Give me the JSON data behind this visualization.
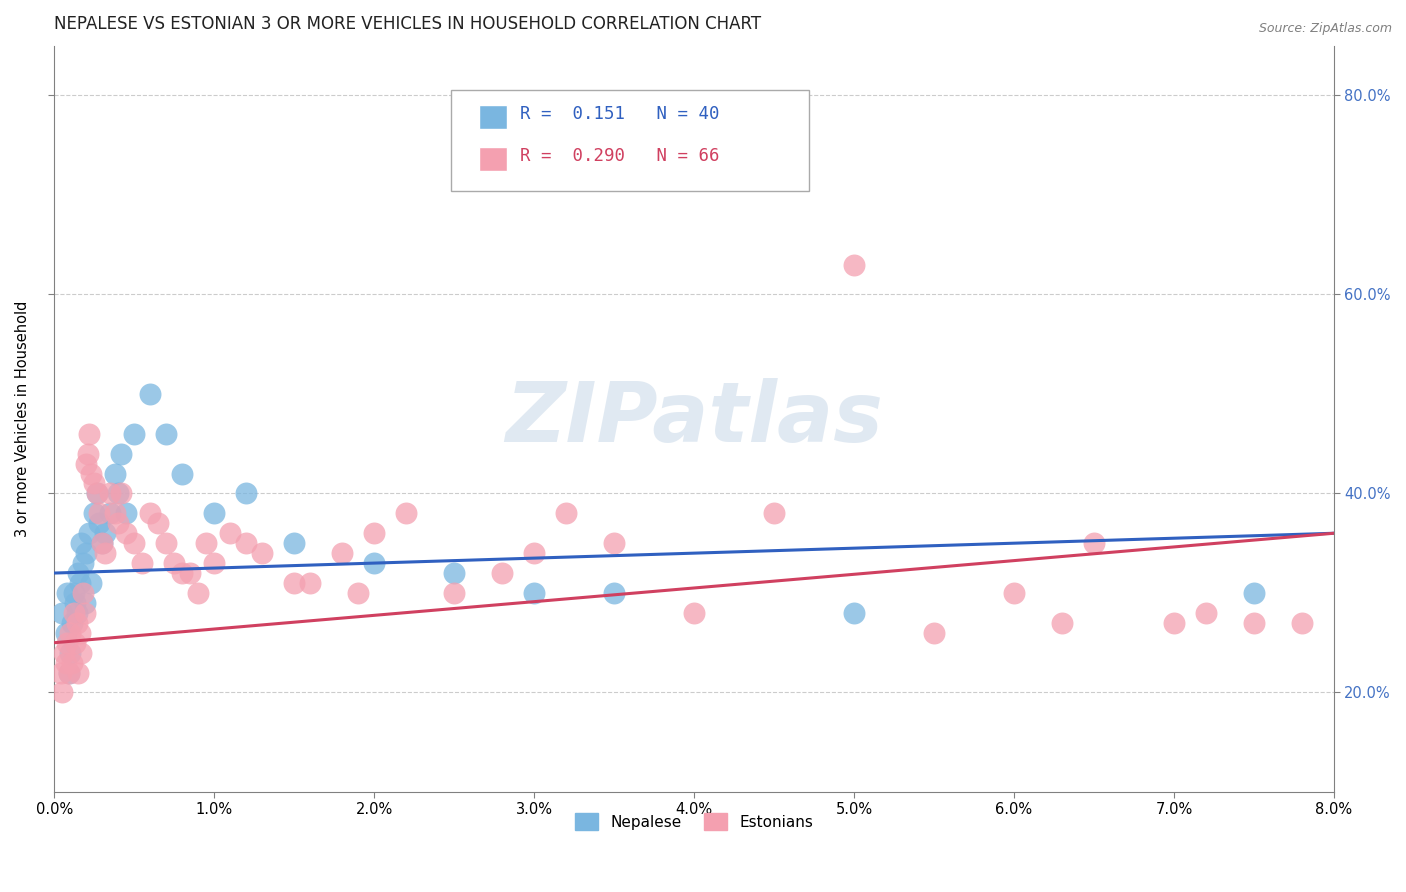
{
  "title": "NEPALESE VS ESTONIAN 3 OR MORE VEHICLES IN HOUSEHOLD CORRELATION CHART",
  "source_text": "Source: ZipAtlas.com",
  "ylabel": "3 or more Vehicles in Household",
  "xlim": [
    0.0,
    8.0
  ],
  "ylim": [
    10.0,
    85.0
  ],
  "yticks": [
    20.0,
    40.0,
    60.0,
    80.0
  ],
  "ytick_labels_right": [
    "20.0%",
    "40.0%",
    "60.0%",
    "80.0%"
  ],
  "xtick_vals": [
    0.0,
    1.0,
    2.0,
    3.0,
    4.0,
    5.0,
    6.0,
    7.0,
    8.0
  ],
  "xtick_labels": [
    "0.0%",
    "1.0%",
    "2.0%",
    "3.0%",
    "4.0%",
    "5.0%",
    "6.0%",
    "7.0%",
    "8.0%"
  ],
  "watermark": "ZIPatlas",
  "nepalese_color": "#7ab6e0",
  "estonian_color": "#f4a0b0",
  "nepalese_line_color": "#3060c0",
  "estonian_line_color": "#d04060",
  "background_color": "#ffffff",
  "legend_nepalese": "R =  0.151   N = 40",
  "legend_estonian": "R =  0.290   N = 66",
  "nep_line_x0": 0.0,
  "nep_line_y0": 32.0,
  "nep_line_x1": 8.0,
  "nep_line_y1": 36.0,
  "est_line_x0": 0.0,
  "est_line_y0": 25.0,
  "est_line_x1": 8.0,
  "est_line_y1": 36.0,
  "nepalese_points_x": [
    0.05,
    0.07,
    0.08,
    0.1,
    0.11,
    0.12,
    0.13,
    0.14,
    0.15,
    0.16,
    0.17,
    0.18,
    0.19,
    0.2,
    0.22,
    0.23,
    0.25,
    0.27,
    0.28,
    0.3,
    0.32,
    0.35,
    0.38,
    0.4,
    0.42,
    0.45,
    0.5,
    0.6,
    0.7,
    0.8,
    1.0,
    1.2,
    1.5,
    2.0,
    2.5,
    3.0,
    3.5,
    5.0,
    7.5,
    0.09
  ],
  "nepalese_points_y": [
    28,
    26,
    30,
    24,
    27,
    30,
    29,
    28,
    32,
    31,
    35,
    33,
    29,
    34,
    36,
    31,
    38,
    40,
    37,
    35,
    36,
    38,
    42,
    40,
    44,
    38,
    46,
    50,
    46,
    42,
    38,
    40,
    35,
    33,
    32,
    30,
    30,
    28,
    30,
    22
  ],
  "estonian_points_x": [
    0.04,
    0.05,
    0.06,
    0.07,
    0.08,
    0.09,
    0.1,
    0.11,
    0.12,
    0.13,
    0.14,
    0.15,
    0.16,
    0.17,
    0.18,
    0.19,
    0.2,
    0.21,
    0.22,
    0.23,
    0.25,
    0.27,
    0.28,
    0.3,
    0.32,
    0.35,
    0.38,
    0.4,
    0.42,
    0.45,
    0.5,
    0.55,
    0.6,
    0.7,
    0.8,
    0.9,
    1.0,
    1.2,
    1.5,
    1.8,
    2.0,
    2.2,
    2.5,
    2.8,
    3.0,
    3.2,
    3.5,
    4.0,
    4.5,
    5.0,
    5.5,
    6.0,
    6.3,
    6.5,
    7.0,
    7.2,
    7.5,
    7.8,
    1.1,
    1.3,
    0.65,
    0.75,
    0.85,
    0.95,
    1.6,
    1.9
  ],
  "estonian_points_y": [
    22,
    20,
    24,
    23,
    25,
    22,
    26,
    23,
    28,
    25,
    27,
    22,
    26,
    24,
    30,
    28,
    43,
    44,
    46,
    42,
    41,
    40,
    38,
    35,
    34,
    40,
    38,
    37,
    40,
    36,
    35,
    33,
    38,
    35,
    32,
    30,
    33,
    35,
    31,
    34,
    36,
    38,
    30,
    32,
    34,
    38,
    35,
    28,
    38,
    63,
    26,
    30,
    27,
    35,
    27,
    28,
    27,
    27,
    36,
    34,
    37,
    33,
    32,
    35,
    31,
    30
  ]
}
